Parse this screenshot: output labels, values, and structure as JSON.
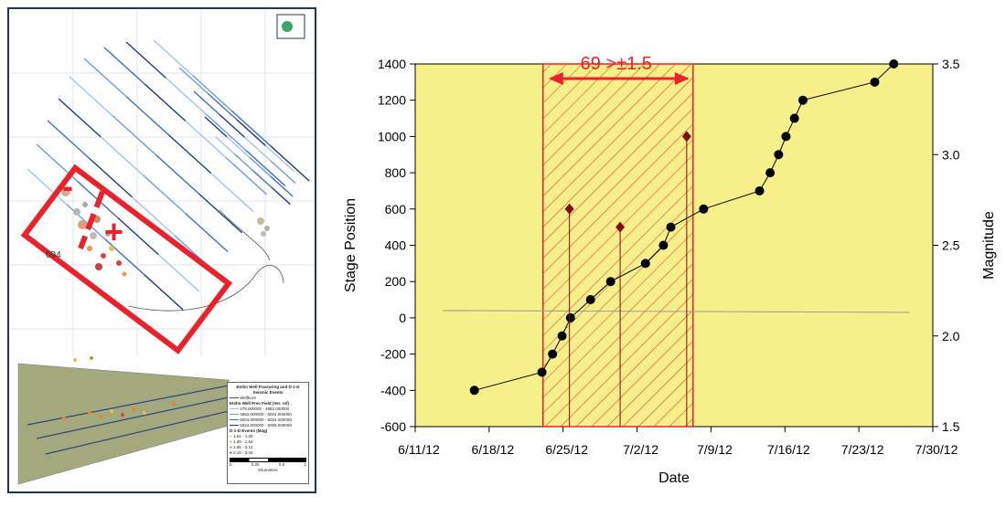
{
  "map": {
    "well_label": "094",
    "minus_sign": "-",
    "plus_sign": "+",
    "legend": {
      "title": "Etsho Well Fracturing and D-1-D Seismic Events",
      "wellbore": "Wellbore",
      "surface_title": "Etsho Well Prec Field (Ver. ref)",
      "ranges": [
        "479.000000 - 4982.000000",
        "4982.000000 - 5004.000000",
        "5004.000000 - 5024.000000",
        "5024.000000 - 5055.000000"
      ],
      "events_title": "D-1-D Events (Mag)",
      "events": [
        "1.61 - 1.29",
        "1.30 - 1.64",
        "1.65 - 2.14",
        "2.15 - 3.04"
      ],
      "scale_ticks": [
        "0",
        "0.25",
        "0.5",
        "1"
      ],
      "scale_unit": "Kilometers"
    },
    "colors": {
      "frame": "#e8232b",
      "wells": "#5a8fd8",
      "plane": "#a3a87d"
    }
  },
  "chart_data": {
    "type": "scatter",
    "xlabel": "Date",
    "ylabel": "Stage Position",
    "y2label": "Magnitude",
    "x_ticks": [
      "6/11/12",
      "6/18/12",
      "6/25/12",
      "7/2/12",
      "7/9/12",
      "7/16/12",
      "7/23/12",
      "7/30/12"
    ],
    "x_tick_days": [
      0,
      7,
      14,
      21,
      28,
      35,
      42,
      49
    ],
    "xlim": [
      0,
      49
    ],
    "ylim": [
      -600,
      1400
    ],
    "y_ticks": [
      -600,
      -400,
      -200,
      0,
      200,
      400,
      600,
      800,
      1000,
      1200,
      1400
    ],
    "y2lim": [
      1.5,
      3.5
    ],
    "y2_ticks": [
      "1.5",
      "2.0",
      "2.5",
      "3.0",
      "3.5"
    ],
    "y2_tick_values": [
      1.5,
      2.0,
      2.5,
      3.0,
      3.5
    ],
    "annotation": "69 >±1.5",
    "shaded_interval_days": [
      12.1,
      26.3
    ],
    "reference_line": {
      "x": [
        2.6,
        46.8
      ],
      "y": [
        40,
        30
      ]
    },
    "series": [
      {
        "name": "Stage Position",
        "axis": "left",
        "style": "line-marker",
        "color": "#000000",
        "x": [
          5.6,
          12,
          13,
          13.9,
          14.7,
          16.6,
          18.5,
          21.8,
          23.5,
          24.2,
          27.3,
          32.6,
          33.6,
          34.4,
          35.1,
          35.9,
          36.7,
          43.5,
          45.3
        ],
        "y": [
          -400,
          -300,
          -200,
          -100,
          0,
          100,
          200,
          300,
          400,
          500,
          600,
          700,
          800,
          900,
          1000,
          1100,
          1200,
          1300,
          1400
        ]
      },
      {
        "name": "Magnitude",
        "axis": "right",
        "style": "diamond-stem",
        "color": "#7a1010",
        "x": [
          14.6,
          19.4,
          25.7
        ],
        "y": [
          2.7,
          2.6,
          3.1
        ]
      }
    ]
  }
}
